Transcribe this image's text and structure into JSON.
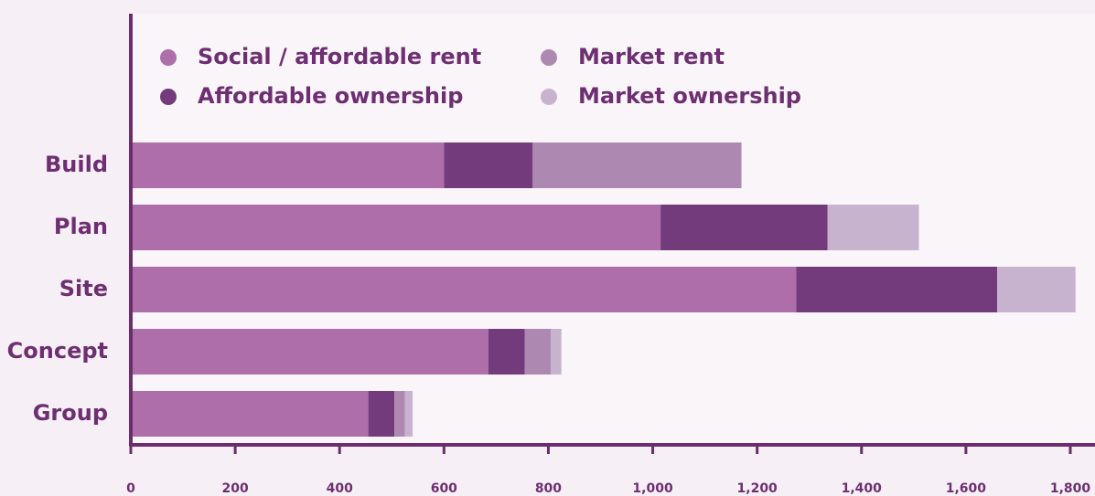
{
  "chart_data": {
    "type": "stacked-bar-horizontal",
    "categories": [
      "Build",
      "Plan",
      "Site",
      "Concept",
      "Group"
    ],
    "series": [
      {
        "name": "Social / affordable rent",
        "color": "#ad6eaa",
        "values": [
          600,
          1015,
          1275,
          685,
          455
        ]
      },
      {
        "name": "Affordable ownership",
        "color": "#733b7b",
        "values": [
          170,
          320,
          385,
          70,
          50
        ]
      },
      {
        "name": "Market rent",
        "color": "#ad89b2",
        "values": [
          400,
          0,
          0,
          50,
          20
        ]
      },
      {
        "name": "Market ownership",
        "color": "#c8b3cf",
        "values": [
          0,
          175,
          150,
          20,
          15
        ]
      }
    ],
    "xlim": [
      0,
      1800
    ],
    "xticks": [
      0,
      200,
      400,
      600,
      800,
      {
        "value": 1000,
        "label": "1,000"
      },
      {
        "value": 1200,
        "label": "1,200"
      },
      {
        "value": 1400,
        "label": "1,400"
      },
      {
        "value": 1600,
        "label": "1,600"
      },
      {
        "value": 1800,
        "label": "1,800"
      }
    ],
    "legend": "top-left"
  }
}
